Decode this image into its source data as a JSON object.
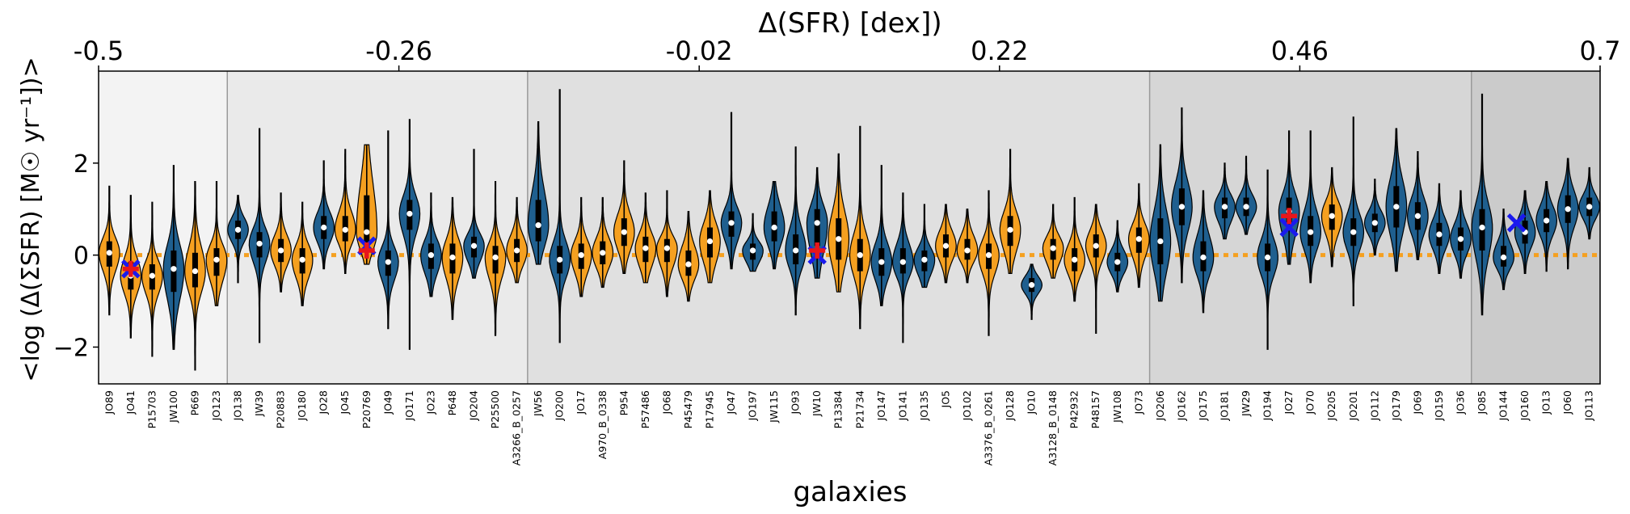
{
  "chart_data": {
    "type": "violin",
    "title": "Δ(SFR) [dex])",
    "ylabel": "<log (Δ(ΣSFR) [M☉ yr⁻¹])>",
    "xlabel": "galaxies",
    "ylim": [
      -2.8,
      4.0
    ],
    "yticks": [
      -2,
      0,
      2
    ],
    "ytick_labels": [
      "−2",
      "0",
      "2"
    ],
    "reference_line_y": 0,
    "top_axis": {
      "range": [
        -0.5,
        0.7
      ],
      "ticks": [
        -0.5,
        -0.26,
        -0.02,
        0.22,
        0.46,
        0.7
      ],
      "tick_labels": [
        "-0.5",
        "-0.26",
        "-0.02",
        "0.22",
        "0.46",
        "0.7"
      ]
    },
    "bins": [
      {
        "from_index": 0,
        "to_index": 5,
        "shade": "#f3f3f3"
      },
      {
        "from_index": 6,
        "to_index": 19,
        "shade": "#eaeaea"
      },
      {
        "from_index": 20,
        "to_index": 48,
        "shade": "#e0e0e0"
      },
      {
        "from_index": 49,
        "to_index": 63,
        "shade": "#d6d6d6"
      },
      {
        "from_index": 64,
        "to_index": 69,
        "shade": "#cbcbcb"
      }
    ],
    "colors": {
      "orange": "#f5a020",
      "blue": "#1f5f8f",
      "ref_line": "#f5a020",
      "red_marker": "#e8161b",
      "blue_marker": "#1a1aee"
    },
    "galaxies": [
      {
        "name": "JO89",
        "color": "orange",
        "median": 0.05,
        "q1": -0.25,
        "q3": 0.3,
        "min": -1.3,
        "max": 1.5
      },
      {
        "name": "JO41",
        "color": "orange",
        "median": -0.45,
        "q1": -0.75,
        "q3": -0.15,
        "min": -1.8,
        "max": 1.3
      },
      {
        "name": "P15703",
        "color": "orange",
        "median": -0.45,
        "q1": -0.75,
        "q3": -0.2,
        "min": -2.2,
        "max": 1.15
      },
      {
        "name": "JW100",
        "color": "blue",
        "median": -0.3,
        "q1": -0.8,
        "q3": 0.1,
        "min": -2.05,
        "max": 1.95
      },
      {
        "name": "P669",
        "color": "orange",
        "median": -0.35,
        "q1": -0.7,
        "q3": 0.05,
        "min": -2.5,
        "max": 1.6
      },
      {
        "name": "JO123",
        "color": "orange",
        "median": -0.1,
        "q1": -0.45,
        "q3": 0.15,
        "min": -1.1,
        "max": 1.6
      },
      {
        "name": "JO138",
        "color": "blue",
        "median": 0.55,
        "q1": 0.35,
        "q3": 0.75,
        "min": -0.6,
        "max": 1.3
      },
      {
        "name": "JW39",
        "color": "blue",
        "median": 0.25,
        "q1": -0.05,
        "q3": 0.5,
        "min": -1.9,
        "max": 2.75
      },
      {
        "name": "P20883",
        "color": "orange",
        "median": 0.1,
        "q1": -0.15,
        "q3": 0.35,
        "min": -0.8,
        "max": 1.35
      },
      {
        "name": "JO180",
        "color": "orange",
        "median": -0.1,
        "q1": -0.4,
        "q3": 0.15,
        "min": -1.1,
        "max": 1.15
      },
      {
        "name": "JO28",
        "color": "blue",
        "median": 0.6,
        "q1": 0.35,
        "q3": 0.85,
        "min": -0.3,
        "max": 2.05
      },
      {
        "name": "JO45",
        "color": "orange",
        "median": 0.55,
        "q1": 0.3,
        "q3": 0.85,
        "min": -0.4,
        "max": 2.3
      },
      {
        "name": "P20769",
        "color": "orange",
        "median": 0.5,
        "q1": 0.2,
        "q3": 1.3,
        "min": -0.2,
        "max": 2.4
      },
      {
        "name": "JO49",
        "color": "blue",
        "median": -0.15,
        "q1": -0.45,
        "q3": 0.1,
        "min": -1.6,
        "max": 2.7
      },
      {
        "name": "JO171",
        "color": "blue",
        "median": 0.9,
        "q1": 0.55,
        "q3": 1.2,
        "min": -2.05,
        "max": 2.95
      },
      {
        "name": "JO23",
        "color": "blue",
        "median": 0.0,
        "q1": -0.3,
        "q3": 0.25,
        "min": -0.9,
        "max": 1.35
      },
      {
        "name": "P648",
        "color": "orange",
        "median": -0.05,
        "q1": -0.4,
        "q3": 0.25,
        "min": -1.4,
        "max": 1.25
      },
      {
        "name": "JO204",
        "color": "blue",
        "median": 0.2,
        "q1": -0.05,
        "q3": 0.4,
        "min": -0.5,
        "max": 2.3
      },
      {
        "name": "P25500",
        "color": "orange",
        "median": -0.05,
        "q1": -0.4,
        "q3": 0.2,
        "min": -1.75,
        "max": 1.6
      },
      {
        "name": "A3266_B_0257",
        "color": "orange",
        "median": 0.1,
        "q1": -0.15,
        "q3": 0.35,
        "min": -0.6,
        "max": 1.25
      },
      {
        "name": "JW56",
        "color": "blue",
        "median": 0.65,
        "q1": 0.3,
        "q3": 1.2,
        "min": -0.2,
        "max": 2.9
      },
      {
        "name": "JO200",
        "color": "blue",
        "median": -0.1,
        "q1": -0.4,
        "q3": 0.2,
        "min": -1.9,
        "max": 3.6
      },
      {
        "name": "JO17",
        "color": "orange",
        "median": 0.0,
        "q1": -0.3,
        "q3": 0.25,
        "min": -0.9,
        "max": 1.25
      },
      {
        "name": "A970_B_0338",
        "color": "orange",
        "median": 0.05,
        "q1": -0.2,
        "q3": 0.3,
        "min": -0.7,
        "max": 1.25
      },
      {
        "name": "P954",
        "color": "orange",
        "median": 0.5,
        "q1": 0.2,
        "q3": 0.8,
        "min": -0.4,
        "max": 2.05
      },
      {
        "name": "P57486",
        "color": "orange",
        "median": 0.15,
        "q1": -0.15,
        "q3": 0.4,
        "min": -0.6,
        "max": 1.35
      },
      {
        "name": "JO68",
        "color": "orange",
        "median": 0.15,
        "q1": -0.15,
        "q3": 0.35,
        "min": -0.9,
        "max": 1.4
      },
      {
        "name": "P45479",
        "color": "orange",
        "median": -0.2,
        "q1": -0.45,
        "q3": 0.1,
        "min": -1.0,
        "max": 0.95
      },
      {
        "name": "P17945",
        "color": "orange",
        "median": 0.3,
        "q1": -0.05,
        "q3": 0.6,
        "min": -0.6,
        "max": 1.4
      },
      {
        "name": "JO47",
        "color": "blue",
        "median": 0.7,
        "q1": 0.4,
        "q3": 0.95,
        "min": -0.3,
        "max": 3.1
      },
      {
        "name": "JO197",
        "color": "blue",
        "median": 0.1,
        "q1": -0.1,
        "q3": 0.25,
        "min": -0.35,
        "max": 0.9
      },
      {
        "name": "JW115",
        "color": "blue",
        "median": 0.6,
        "q1": 0.3,
        "q3": 0.95,
        "min": -0.3,
        "max": 1.6
      },
      {
        "name": "JO93",
        "color": "blue",
        "median": 0.1,
        "q1": -0.2,
        "q3": 0.45,
        "min": -1.3,
        "max": 2.35
      },
      {
        "name": "JW10",
        "color": "blue",
        "median": 0.7,
        "q1": 0.2,
        "q3": 1.0,
        "min": -0.5,
        "max": 1.9
      },
      {
        "name": "P13384",
        "color": "orange",
        "median": 0.35,
        "q1": -0.1,
        "q3": 0.8,
        "min": -0.8,
        "max": 2.2
      },
      {
        "name": "P21734",
        "color": "orange",
        "median": 0.0,
        "q1": -0.35,
        "q3": 0.35,
        "min": -1.6,
        "max": 2.8
      },
      {
        "name": "JO147",
        "color": "blue",
        "median": -0.15,
        "q1": -0.45,
        "q3": 0.15,
        "min": -1.1,
        "max": 1.95
      },
      {
        "name": "JO141",
        "color": "blue",
        "median": -0.15,
        "q1": -0.4,
        "q3": 0.15,
        "min": -1.9,
        "max": 1.35
      },
      {
        "name": "JO135",
        "color": "blue",
        "median": -0.1,
        "q1": -0.35,
        "q3": 0.1,
        "min": -0.7,
        "max": 1.1
      },
      {
        "name": "JO5",
        "color": "orange",
        "median": 0.2,
        "q1": -0.05,
        "q3": 0.45,
        "min": -0.6,
        "max": 1.1
      },
      {
        "name": "JO102",
        "color": "orange",
        "median": 0.1,
        "q1": -0.1,
        "q3": 0.35,
        "min": -0.6,
        "max": 1.0
      },
      {
        "name": "A3376_B_0261",
        "color": "orange",
        "median": 0.0,
        "q1": -0.3,
        "q3": 0.25,
        "min": -1.75,
        "max": 1.4
      },
      {
        "name": "JO128",
        "color": "orange",
        "median": 0.55,
        "q1": 0.2,
        "q3": 0.85,
        "min": -0.4,
        "max": 2.3
      },
      {
        "name": "JO10",
        "color": "blue",
        "median": -0.65,
        "q1": -0.8,
        "q3": -0.5,
        "min": -1.4,
        "max": -0.2
      },
      {
        "name": "A3128_B_0148",
        "color": "orange",
        "median": 0.15,
        "q1": -0.1,
        "q3": 0.35,
        "min": -0.5,
        "max": 1.1
      },
      {
        "name": "P42932",
        "color": "orange",
        "median": -0.1,
        "q1": -0.35,
        "q3": 0.15,
        "min": -1.0,
        "max": 1.25
      },
      {
        "name": "P48157",
        "color": "orange",
        "median": 0.2,
        "q1": -0.05,
        "q3": 0.45,
        "min": -1.7,
        "max": 1.1
      },
      {
        "name": "JW108",
        "color": "blue",
        "median": -0.15,
        "q1": -0.35,
        "q3": 0.05,
        "min": -0.8,
        "max": 0.75
      },
      {
        "name": "JO73",
        "color": "orange",
        "median": 0.35,
        "q1": 0.05,
        "q3": 0.6,
        "min": -0.7,
        "max": 1.55
      },
      {
        "name": "JO206",
        "color": "blue",
        "median": 0.3,
        "q1": -0.2,
        "q3": 0.8,
        "min": -1.0,
        "max": 2.4
      },
      {
        "name": "JO162",
        "color": "blue",
        "median": 1.05,
        "q1": 0.65,
        "q3": 1.45,
        "min": -0.6,
        "max": 3.2
      },
      {
        "name": "JO175",
        "color": "blue",
        "median": -0.05,
        "q1": -0.35,
        "q3": 0.3,
        "min": -1.25,
        "max": 1.4
      },
      {
        "name": "JO181",
        "color": "blue",
        "median": 1.05,
        "q1": 0.8,
        "q3": 1.25,
        "min": 0.35,
        "max": 2.0
      },
      {
        "name": "JW29",
        "color": "blue",
        "median": 1.05,
        "q1": 0.85,
        "q3": 1.25,
        "min": 0.45,
        "max": 2.15
      },
      {
        "name": "JO194",
        "color": "blue",
        "median": -0.05,
        "q1": -0.35,
        "q3": 0.25,
        "min": -2.05,
        "max": 1.85
      },
      {
        "name": "JO27",
        "color": "blue",
        "median": 0.95,
        "q1": 0.55,
        "q3": 1.25,
        "min": -0.2,
        "max": 2.7
      },
      {
        "name": "JO70",
        "color": "blue",
        "median": 0.5,
        "q1": 0.2,
        "q3": 0.85,
        "min": -0.6,
        "max": 2.7
      },
      {
        "name": "JO205",
        "color": "orange",
        "median": 0.85,
        "q1": 0.55,
        "q3": 1.1,
        "min": -0.25,
        "max": 1.9
      },
      {
        "name": "JO201",
        "color": "blue",
        "median": 0.5,
        "q1": 0.2,
        "q3": 0.8,
        "min": -1.1,
        "max": 3.0
      },
      {
        "name": "JO112",
        "color": "blue",
        "median": 0.7,
        "q1": 0.5,
        "q3": 0.9,
        "min": 0.0,
        "max": 1.65
      },
      {
        "name": "JO179",
        "color": "blue",
        "median": 1.05,
        "q1": 0.6,
        "q3": 1.5,
        "min": -0.35,
        "max": 2.75
      },
      {
        "name": "JO69",
        "color": "blue",
        "median": 0.85,
        "q1": 0.55,
        "q3": 1.15,
        "min": -0.1,
        "max": 2.25
      },
      {
        "name": "JO159",
        "color": "blue",
        "median": 0.45,
        "q1": 0.2,
        "q3": 0.7,
        "min": -0.4,
        "max": 1.55
      },
      {
        "name": "JO36",
        "color": "blue",
        "median": 0.35,
        "q1": 0.1,
        "q3": 0.6,
        "min": -0.5,
        "max": 1.4
      },
      {
        "name": "JO85",
        "color": "blue",
        "median": 0.6,
        "q1": 0.1,
        "q3": 1.0,
        "min": -1.3,
        "max": 3.5
      },
      {
        "name": "JO144",
        "color": "blue",
        "median": -0.05,
        "q1": -0.25,
        "q3": 0.2,
        "min": -0.75,
        "max": 1.0
      },
      {
        "name": "JO160",
        "color": "blue",
        "median": 0.5,
        "q1": 0.25,
        "q3": 0.75,
        "min": -0.4,
        "max": 1.4
      },
      {
        "name": "JO13",
        "color": "blue",
        "median": 0.75,
        "q1": 0.5,
        "q3": 1.0,
        "min": -0.35,
        "max": 1.6
      },
      {
        "name": "JO60",
        "color": "blue",
        "median": 1.0,
        "q1": 0.7,
        "q3": 1.3,
        "min": -0.3,
        "max": 2.1
      },
      {
        "name": "JO113",
        "color": "blue",
        "median": 1.05,
        "q1": 0.85,
        "q3": 1.25,
        "min": 0.35,
        "max": 1.9
      }
    ],
    "markers": [
      {
        "galaxy": "JO41",
        "type": "blue-x",
        "y": -0.3
      },
      {
        "galaxy": "JO41",
        "type": "red-plus",
        "y": -0.3
      },
      {
        "galaxy": "P20769",
        "type": "blue-x",
        "y": 0.2
      },
      {
        "galaxy": "P20769",
        "type": "red-plus",
        "y": 0.1
      },
      {
        "galaxy": "JW10",
        "type": "blue-x",
        "y": 0.0
      },
      {
        "galaxy": "JW10",
        "type": "red-plus",
        "y": 0.1
      },
      {
        "galaxy": "JO27",
        "type": "blue-x",
        "y": 0.6
      },
      {
        "galaxy": "JO27",
        "type": "red-plus",
        "y": 0.85
      },
      {
        "galaxy": "JO144",
        "type": "blue-x",
        "y": 0.7
      }
    ]
  }
}
